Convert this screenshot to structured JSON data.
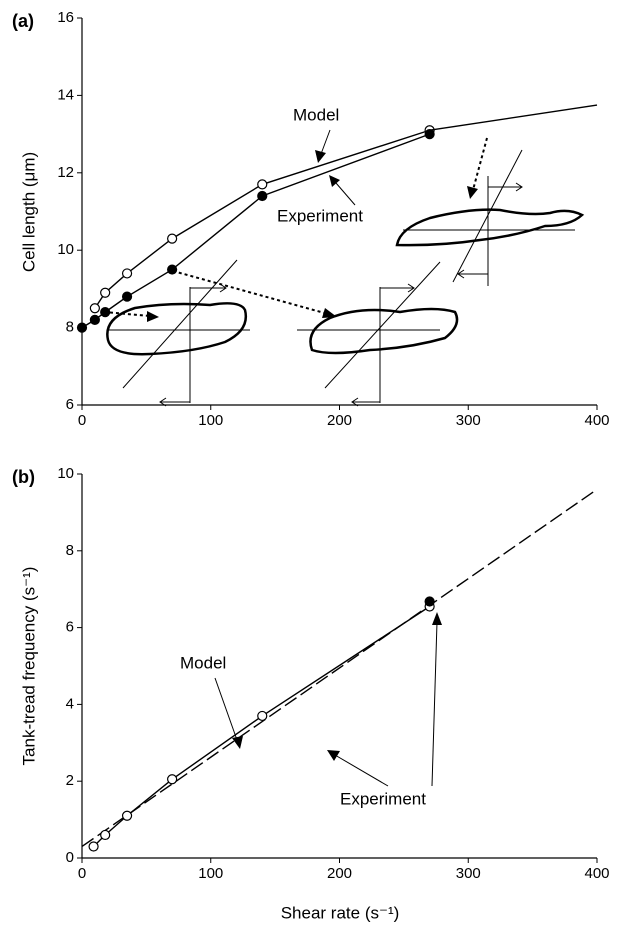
{
  "chart_data": [
    {
      "type": "line",
      "panel": "(a)",
      "ylabel": "Cell length (μm)",
      "xlim": [
        0,
        400
      ],
      "xticks": [
        0,
        100,
        200,
        300,
        400
      ],
      "ylim": [
        6,
        16
      ],
      "yticks": [
        6,
        8,
        10,
        12,
        14,
        16
      ],
      "annotations": [
        "Model",
        "Experiment"
      ],
      "series": [
        {
          "name": "Model",
          "color": "#000000",
          "marker": "open",
          "x": [
            10,
            18,
            35,
            70,
            140,
            270
          ],
          "values": [
            8.5,
            8.9,
            9.4,
            10.3,
            11.7,
            13.1
          ]
        },
        {
          "color": "#000000",
          "x": [
            270,
            400
          ],
          "values": [
            13.1,
            13.75
          ]
        },
        {
          "name": "Experiment",
          "color": "#000000",
          "marker": "filled",
          "x": [
            0,
            10,
            18,
            35,
            70,
            140,
            270
          ],
          "values": [
            8,
            8.2,
            8.4,
            8.8,
            9.5,
            11.4,
            13.0
          ]
        }
      ]
    },
    {
      "type": "line",
      "panel": "(b)",
      "ylabel": "Tank-tread frequency (s⁻¹)",
      "xlabel": "Shear rate (s⁻¹)",
      "xlim": [
        0,
        400
      ],
      "xticks": [
        0,
        100,
        200,
        300,
        400
      ],
      "ylim": [
        0,
        10
      ],
      "yticks": [
        0,
        2,
        4,
        6,
        8,
        10
      ],
      "annotations": [
        "Model",
        "Experiment"
      ],
      "series": [
        {
          "name": "Model",
          "color": "#000000",
          "dash": true,
          "x": [
            0,
            400
          ],
          "values": [
            0.3,
            9.6
          ]
        },
        {
          "name": "Experiment",
          "color": "#000000",
          "marker": "open",
          "x": [
            9,
            18,
            35,
            70,
            140,
            270
          ],
          "values": [
            0.3,
            0.6,
            1.1,
            2.05,
            3.7,
            6.55
          ]
        },
        {
          "color": "#000000",
          "marker": "filled",
          "x": [
            270
          ],
          "values": [
            6.68
          ]
        }
      ]
    }
  ]
}
